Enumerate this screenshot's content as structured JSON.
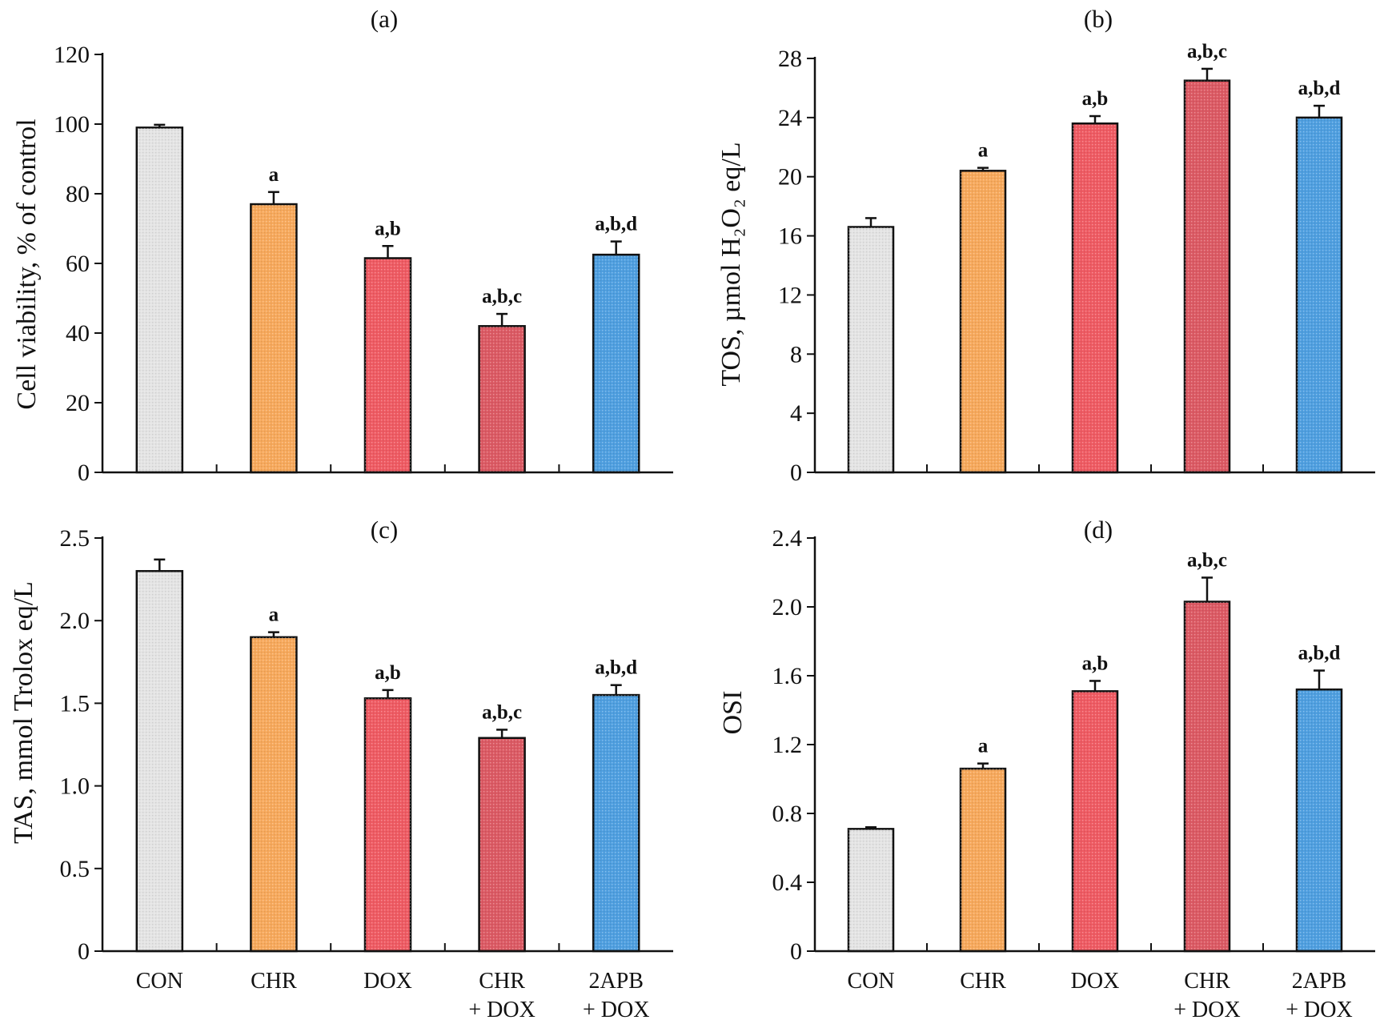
{
  "colors": {
    "CON": "#e4e4e4",
    "CHR": "#f7a95c",
    "DOX": "#ef5b63",
    "CHR + DOX": "#dc5a64",
    "2APB + DOX": "#4f9fe0"
  },
  "chart_data": [
    {
      "type": "bar",
      "panel_label": "(a)",
      "categories": [
        "CON",
        "CHR",
        "DOX",
        "CHR + DOX",
        "2APB + DOX"
      ],
      "values": [
        99,
        77,
        61.5,
        42,
        62.5
      ],
      "errors": [
        0.8,
        3.5,
        3.5,
        3.5,
        3.8
      ],
      "annotations": [
        "",
        "a",
        "a,b",
        "a,b,c",
        "a,b,d"
      ],
      "ylabel": "Cell viability, % of control",
      "ylim": [
        0,
        120
      ],
      "yticks": [
        "0",
        "20",
        "40",
        "60",
        "80",
        "100",
        "120"
      ]
    },
    {
      "type": "bar",
      "panel_label": "(b)",
      "categories": [
        "CON",
        "CHR",
        "DOX",
        "CHR + DOX",
        "2APB + DOX"
      ],
      "values": [
        16.6,
        20.4,
        23.6,
        26.5,
        24.0
      ],
      "errors": [
        0.6,
        0.2,
        0.5,
        0.8,
        0.8
      ],
      "annotations": [
        "",
        "a",
        "a,b",
        "a,b,c",
        "a,b,d"
      ],
      "ylabel": "TOS, µmol H₂O₂ eq/L",
      "ylim": [
        0,
        28
      ],
      "yticks": [
        "0",
        "4",
        "8",
        "12",
        "16",
        "20",
        "24",
        "28"
      ]
    },
    {
      "type": "bar",
      "panel_label": "(c)",
      "categories": [
        "CON",
        "CHR",
        "DOX",
        "CHR + DOX",
        "2APB + DOX"
      ],
      "values": [
        2.3,
        1.9,
        1.53,
        1.29,
        1.55
      ],
      "errors": [
        0.07,
        0.03,
        0.05,
        0.05,
        0.06
      ],
      "annotations": [
        "",
        "a",
        "a,b",
        "a,b,c",
        "a,b,d"
      ],
      "ylabel": "TAS, mmol Trolox eq/L",
      "ylim": [
        0,
        2.5
      ],
      "yticks": [
        "0",
        "0.5",
        "1.0",
        "1.5",
        "2.0",
        "2.5"
      ]
    },
    {
      "type": "bar",
      "panel_label": "(d)",
      "categories": [
        "CON",
        "CHR",
        "DOX",
        "CHR + DOX",
        "2APB + DOX"
      ],
      "values": [
        0.71,
        1.06,
        1.51,
        2.03,
        1.52
      ],
      "errors": [
        0.01,
        0.03,
        0.06,
        0.14,
        0.11
      ],
      "annotations": [
        "",
        "a",
        "a,b",
        "a,b,c",
        "a,b,d"
      ],
      "ylabel": "OSI",
      "ylim": [
        0,
        2.4
      ],
      "yticks": [
        "0",
        "0.4",
        "0.8",
        "1.2",
        "1.6",
        "2.0",
        "2.4"
      ]
    }
  ],
  "x_labels": [
    [
      "CON"
    ],
    [
      "CHR"
    ],
    [
      "DOX"
    ],
    [
      "CHR",
      "+ DOX"
    ],
    [
      "2APB",
      "+ DOX"
    ]
  ]
}
